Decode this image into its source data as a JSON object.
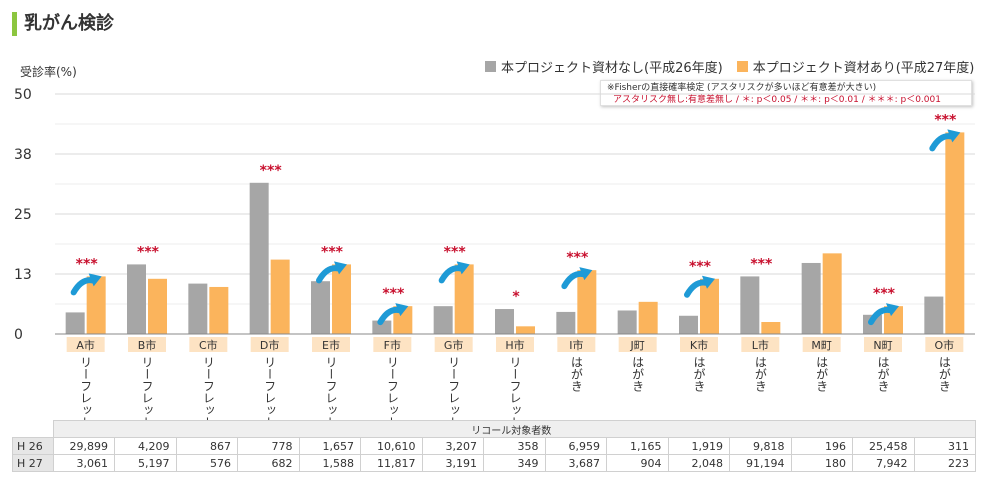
{
  "page": {
    "title": "乳がん検診"
  },
  "legend": {
    "items": [
      {
        "label": "本プロジェクト資材なし(平成26年度)",
        "color": "#a6a6a6"
      },
      {
        "label": "本プロジェクト資材あり(平成27年度)",
        "color": "#fbb45c"
      }
    ]
  },
  "note": {
    "line1": "※Fisherの直接確率検定 (アスタリスクが多いほど有意差が大きい)",
    "line2": "アスタリスク無し:有意差無し / ＊: p＜0.05 / ＊＊: p＜0.01 / ＊＊＊: p＜0.001"
  },
  "colors": {
    "h26": "#a6a6a6",
    "h27": "#fbb45c",
    "star": "#c8102e",
    "arrow": "#1e9ad6",
    "label_bg": "#fde3c3",
    "grid": "#d9d9d9"
  },
  "chart_data": {
    "type": "bar",
    "ylabel": "受診率(%)",
    "ylim": [
      0,
      50
    ],
    "yticks": [
      "50",
      "38",
      "25",
      "13",
      "0"
    ],
    "categories": [
      "A市",
      "B市",
      "C市",
      "D市",
      "E市",
      "F市",
      "G市",
      "H市",
      "I市",
      "J町",
      "K市",
      "L市",
      "M町",
      "N町",
      "O市"
    ],
    "materials": [
      "リーフレット",
      "リーフレット",
      "リーフレット",
      "リーフレット",
      "リーフレット",
      "リーフレット",
      "リーフレット",
      "リーフレット",
      "はがき",
      "はがき",
      "はがき",
      "はがき",
      "はがき",
      "はがき",
      "はがき"
    ],
    "series": [
      {
        "name": "本プロジェクト資材なし(平成26年度)",
        "values": [
          4.5,
          14.5,
          10.5,
          31.5,
          11.0,
          2.8,
          5.8,
          5.2,
          4.6,
          4.9,
          3.8,
          12.0,
          14.8,
          4.0,
          7.8
        ]
      },
      {
        "name": "本プロジェクト資材あり(平成27年度)",
        "values": [
          12.0,
          11.5,
          9.8,
          15.5,
          14.5,
          5.8,
          14.5,
          1.6,
          13.3,
          6.7,
          11.5,
          2.5,
          16.8,
          5.8,
          42.0
        ]
      }
    ],
    "significance": [
      "***",
      "***",
      "",
      "***",
      "***",
      "***",
      "***",
      "*",
      "***",
      "",
      "***",
      "***",
      "",
      "***",
      "***"
    ],
    "arrows": [
      true,
      false,
      false,
      false,
      true,
      true,
      true,
      false,
      true,
      false,
      true,
      false,
      false,
      true,
      true
    ]
  },
  "table": {
    "caption": "リコール対象者数",
    "rows": [
      {
        "label": "H 26",
        "values": [
          "29,899",
          "4,209",
          "867",
          "778",
          "1,657",
          "10,610",
          "3,207",
          "358",
          "6,959",
          "1,165",
          "1,919",
          "9,818",
          "196",
          "25,458",
          "311"
        ]
      },
      {
        "label": "H 27",
        "values": [
          "3,061",
          "5,197",
          "576",
          "682",
          "1,588",
          "11,817",
          "3,191",
          "349",
          "3,687",
          "904",
          "2,048",
          "91,194",
          "180",
          "7,942",
          "223"
        ]
      }
    ]
  }
}
